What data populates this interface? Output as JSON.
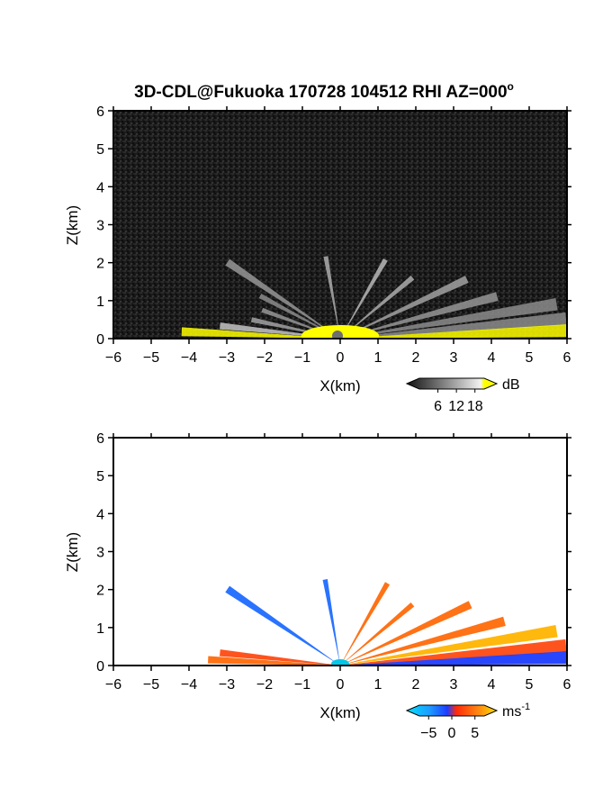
{
  "page": {
    "title": "3D-CDL@Fukuoka 170728 104512 RHI AZ=000",
    "title_degree": "o"
  },
  "colors": {
    "reflectivity_background": "#1c1c1c",
    "reflectivity_highlight": "#ffff00",
    "velocity_negative": "#1e3cff",
    "velocity_positive": "#ff4a12",
    "velocity_near_zero": "#00c8e6",
    "velocity_high": "#ffb400"
  },
  "chart_data": [
    {
      "type": "heatmap",
      "name": "reflectivity",
      "xlabel": "X(km)",
      "ylabel": "Z(km)",
      "xlim": [
        -6,
        6
      ],
      "ylim": [
        0,
        6
      ],
      "xticks": [
        -6,
        -5,
        -4,
        -3,
        -2,
        -1,
        0,
        1,
        2,
        3,
        4,
        5,
        6
      ],
      "yticks": [
        0,
        1,
        2,
        3,
        4,
        5,
        6
      ],
      "colorbar": {
        "unit": "dB",
        "ticks": [
          6,
          12,
          18
        ],
        "range": [
          0,
          21
        ],
        "palette": "grayscale, yellow above 18"
      },
      "beams": [
        {
          "elev_deg": 2.5,
          "range_km": 4.2,
          "side": "left",
          "level": 22
        },
        {
          "elev_deg": 6,
          "range_km": 3.2,
          "side": "left",
          "level": 14
        },
        {
          "elev_deg": 12,
          "range_km": 2.4,
          "side": "left",
          "level": 11
        },
        {
          "elev_deg": 20,
          "range_km": 2.2,
          "side": "left",
          "level": 10
        },
        {
          "elev_deg": 28,
          "range_km": 2.4,
          "side": "left",
          "level": 9
        },
        {
          "elev_deg": 34,
          "range_km": 3.6,
          "side": "left",
          "level": 10
        },
        {
          "elev_deg": 80,
          "range_km": 2.2,
          "side": "left",
          "level": 12
        },
        {
          "elev_deg": 60,
          "range_km": 2.4,
          "side": "right",
          "level": 13
        },
        {
          "elev_deg": 40,
          "range_km": 2.5,
          "side": "right",
          "level": 12
        },
        {
          "elev_deg": 25,
          "range_km": 3.7,
          "side": "right",
          "level": 11
        },
        {
          "elev_deg": 15,
          "range_km": 4.3,
          "side": "right",
          "level": 10
        },
        {
          "elev_deg": 9,
          "range_km": 5.8,
          "side": "right",
          "level": 9
        },
        {
          "elev_deg": 5,
          "range_km": 6.0,
          "side": "right",
          "level": 9
        },
        {
          "elev_deg": 2,
          "range_km": 6.0,
          "side": "right",
          "level": 18
        }
      ]
    },
    {
      "type": "heatmap",
      "name": "doppler_velocity",
      "xlabel": "X(km)",
      "ylabel": "Z(km)",
      "xlim": [
        -6,
        6
      ],
      "ylim": [
        0,
        6
      ],
      "xticks": [
        -6,
        -5,
        -4,
        -3,
        -2,
        -1,
        0,
        1,
        2,
        3,
        4,
        5,
        6
      ],
      "yticks": [
        0,
        1,
        2,
        3,
        4,
        5,
        6
      ],
      "colorbar": {
        "unit": "ms",
        "unit_exponent": "-1",
        "ticks": [
          -5,
          0,
          5
        ],
        "range": [
          -7,
          7
        ],
        "palette": "cyan-blue-red-yellow"
      },
      "beams": [
        {
          "elev_deg": 2.5,
          "range_km": 3.5,
          "side": "left",
          "value": 3
        },
        {
          "elev_deg": 6,
          "range_km": 3.2,
          "side": "left",
          "value": 2.5
        },
        {
          "elev_deg": 34,
          "range_km": 3.6,
          "side": "left",
          "value": -4
        },
        {
          "elev_deg": 80,
          "range_km": 2.3,
          "side": "left",
          "value": -5
        },
        {
          "elev_deg": 60,
          "range_km": 2.5,
          "side": "right",
          "value": 3
        },
        {
          "elev_deg": 40,
          "range_km": 2.5,
          "side": "right",
          "value": 3
        },
        {
          "elev_deg": 25,
          "range_km": 3.8,
          "side": "right",
          "value": 3.5
        },
        {
          "elev_deg": 15,
          "range_km": 4.5,
          "side": "right",
          "value": 3
        },
        {
          "elev_deg": 9,
          "range_km": 5.8,
          "side": "right",
          "value": 4
        },
        {
          "elev_deg": 5,
          "range_km": 6.0,
          "side": "right",
          "value": 2.5
        },
        {
          "elev_deg": 2,
          "range_km": 6.0,
          "side": "right",
          "value": -2
        }
      ]
    }
  ]
}
